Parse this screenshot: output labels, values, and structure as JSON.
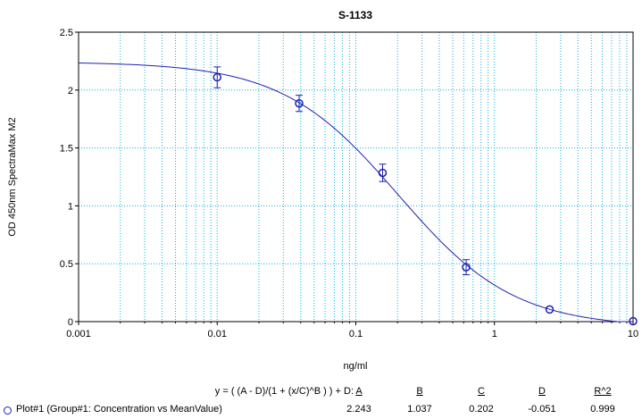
{
  "chart_data": {
    "type": "scatter",
    "title": "S-1133",
    "xlabel": "ng/ml",
    "ylabel": "OD 450nm SpectraMax M2",
    "x_scale": "log",
    "xlim": [
      0.001,
      10
    ],
    "ylim": [
      0,
      2.5
    ],
    "x_ticks": [
      "0.001",
      "0.01",
      "0.1",
      "1",
      "10"
    ],
    "y_ticks": [
      "0",
      "0.5",
      "1",
      "1.5",
      "2",
      "2.5"
    ],
    "grid": true,
    "colors": {
      "series": "#1f1fb4",
      "grid": "#00b4e6"
    },
    "series": [
      {
        "name": "Plot#1 (Group#1: Concentration vs MeanValue)",
        "points": [
          {
            "x": 0.01,
            "y": 2.11,
            "err": 0.09
          },
          {
            "x": 0.039,
            "y": 1.885,
            "err": 0.07
          },
          {
            "x": 0.156,
            "y": 1.285,
            "err": 0.075
          },
          {
            "x": 0.625,
            "y": 0.47,
            "err": 0.065
          },
          {
            "x": 2.5,
            "y": 0.105,
            "err": 0
          },
          {
            "x": 10,
            "y": 0.0,
            "err": 0
          }
        ]
      }
    ],
    "fit": {
      "equation": "y = ( (A - D)/(1 + (x/C)^B ) ) + D:",
      "params": {
        "A": 2.243,
        "B": 1.037,
        "C": 0.202,
        "D": -0.051
      },
      "r2": 0.999
    }
  },
  "fit_table": {
    "equation": "y = ( (A - D)/(1 + (x/C)^B ) ) + D:",
    "headers": [
      "A",
      "B",
      "C",
      "D",
      "R^2"
    ],
    "row_label": "Plot#1 (Group#1: Concentration vs MeanValue)",
    "values": [
      "2.243",
      "1.037",
      "0.202",
      "-0.051",
      "0.999"
    ]
  }
}
